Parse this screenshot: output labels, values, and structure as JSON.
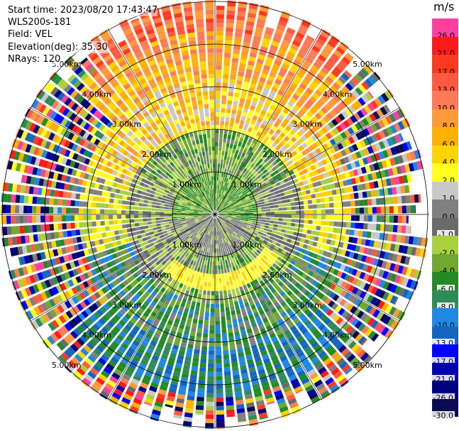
{
  "info": {
    "start_time": "Start time: 2023/08/20 17:43:47",
    "device": "WLS200s-181",
    "field": "Field: VEL",
    "elevation": "Elevation(deg): 35.30",
    "nrays": "NRays: 120"
  },
  "rings": [
    {
      "km": 1,
      "label": "1.00km"
    },
    {
      "km": 2,
      "label": "2.00km"
    },
    {
      "km": 3,
      "label": "3.00km"
    },
    {
      "km": 4,
      "label": "4.00km"
    },
    {
      "km": 5,
      "label": "5.00km"
    }
  ],
  "colorbar": {
    "unit": "m/s",
    "bins": [
      {
        "label": "26.0",
        "color": "#ff3fa0"
      },
      {
        "label": "21.0",
        "color": "#ff1a1a"
      },
      {
        "label": "17.0",
        "color": "#ff3a1f"
      },
      {
        "label": "13.0",
        "color": "#ff5a40"
      },
      {
        "label": "10.0",
        "color": "#ff7a55"
      },
      {
        "label": "8.0",
        "color": "#ff9a3a"
      },
      {
        "label": "6.0",
        "color": "#ffb000"
      },
      {
        "label": "4.0",
        "color": "#ffd400"
      },
      {
        "label": "2.0",
        "color": "#ffff20"
      },
      {
        "label": "1.0",
        "color": "#c8c8c8"
      },
      {
        "label": "0.0",
        "color": "#808080"
      },
      {
        "label": "-1.0",
        "color": "#6a6a6a"
      },
      {
        "label": "-2.0",
        "color": "#a8d040"
      },
      {
        "label": "-4.0",
        "color": "#70a830"
      },
      {
        "label": "-6.0",
        "color": "#238b23"
      },
      {
        "label": "-8.0",
        "color": "#2e8b57"
      },
      {
        "label": "-10.0",
        "color": "#1e88e5"
      },
      {
        "label": "-13.0",
        "color": "#1565c0"
      },
      {
        "label": "-17.0",
        "color": "#0000ff"
      },
      {
        "label": "-21.0",
        "color": "#0000b0"
      },
      {
        "label": "-26.0",
        "color": "#000080"
      },
      {
        "label": "-30.0",
        "color": "#0a0a50"
      }
    ]
  }
}
